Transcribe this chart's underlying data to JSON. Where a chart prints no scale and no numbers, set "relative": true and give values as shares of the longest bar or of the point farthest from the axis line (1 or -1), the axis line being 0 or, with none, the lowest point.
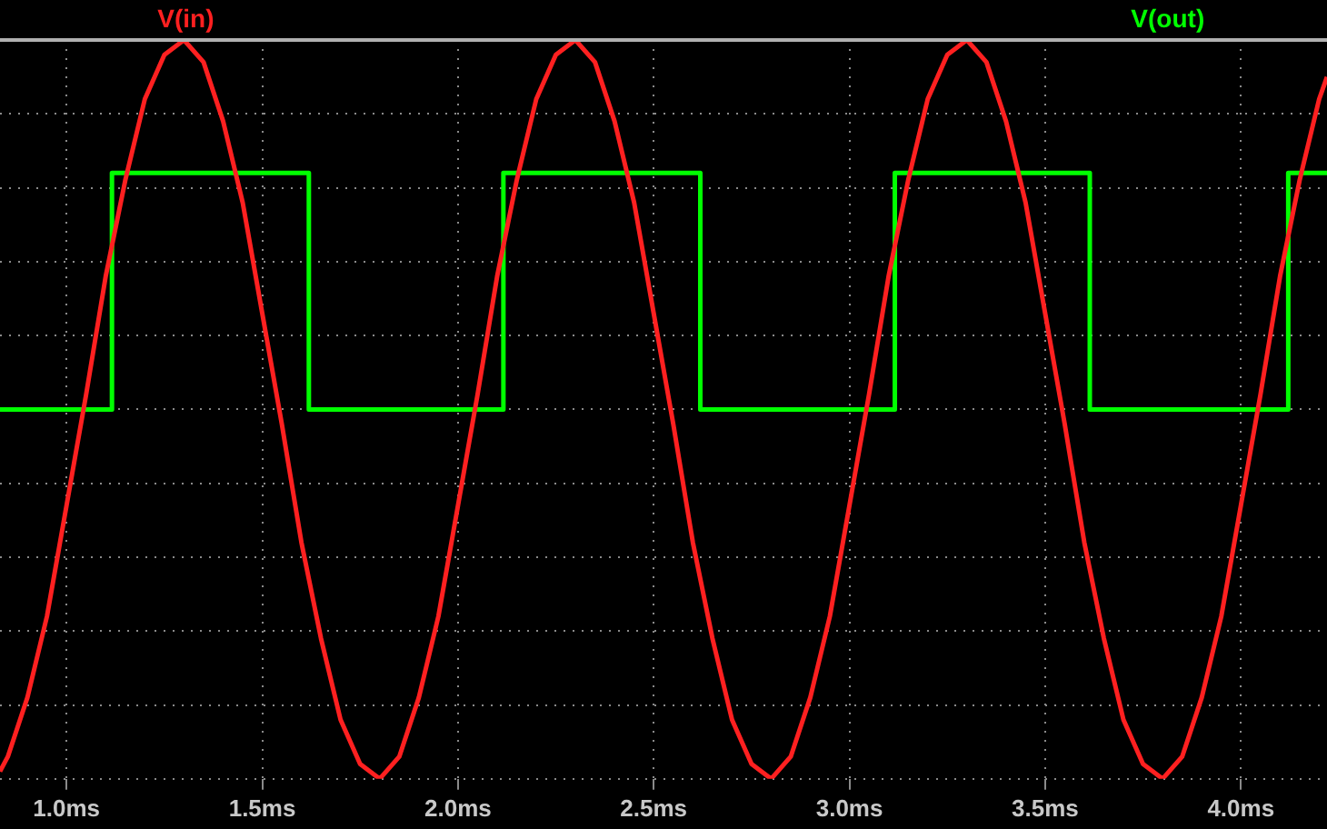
{
  "chart_data": {
    "type": "line",
    "relative": true,
    "grid": true,
    "legend": "top",
    "marker": "none",
    "line_style": "solid",
    "xlim": [
      0.83,
      4.22
    ],
    "xticks": [
      {
        "value": 1.0,
        "label": "1.0ms"
      },
      {
        "value": 1.5,
        "label": "1.5ms"
      },
      {
        "value": 2.0,
        "label": "2.0ms"
      },
      {
        "value": 2.5,
        "label": "2.5ms"
      },
      {
        "value": 3.0,
        "label": "3.0ms"
      },
      {
        "value": 3.5,
        "label": "3.5ms"
      },
      {
        "value": 4.0,
        "label": "4.0ms"
      }
    ],
    "series": [
      {
        "name": "V(in)",
        "color": "#ff2020",
        "x": [
          0.83,
          0.85,
          0.9,
          0.95,
          1.0,
          1.05,
          1.1,
          1.15,
          1.2,
          1.25,
          1.3,
          1.35,
          1.4,
          1.45,
          1.5,
          1.55,
          1.6,
          1.65,
          1.7,
          1.75,
          1.8,
          1.85,
          1.9,
          1.95,
          2.0,
          2.05,
          2.1,
          2.15,
          2.2,
          2.25,
          2.3,
          2.35,
          2.4,
          2.45,
          2.5,
          2.55,
          2.6,
          2.65,
          2.7,
          2.75,
          2.8,
          2.85,
          2.9,
          2.95,
          3.0,
          3.05,
          3.1,
          3.15,
          3.2,
          3.25,
          3.3,
          3.35,
          3.4,
          3.45,
          3.5,
          3.55,
          3.6,
          3.65,
          3.7,
          3.75,
          3.8,
          3.85,
          3.9,
          3.95,
          4.0,
          4.05,
          4.1,
          4.15,
          4.2,
          4.22
        ],
        "values": [
          0.01,
          0.03,
          0.11,
          0.22,
          0.37,
          0.52,
          0.68,
          0.81,
          0.92,
          0.98,
          1.0,
          0.97,
          0.89,
          0.78,
          0.63,
          0.48,
          0.32,
          0.19,
          0.08,
          0.02,
          0.0,
          0.03,
          0.11,
          0.22,
          0.37,
          0.52,
          0.68,
          0.81,
          0.92,
          0.98,
          1.0,
          0.97,
          0.89,
          0.78,
          0.63,
          0.48,
          0.32,
          0.19,
          0.08,
          0.02,
          0.0,
          0.03,
          0.11,
          0.22,
          0.37,
          0.52,
          0.68,
          0.81,
          0.92,
          0.98,
          1.0,
          0.97,
          0.89,
          0.78,
          0.63,
          0.48,
          0.32,
          0.19,
          0.08,
          0.02,
          0.0,
          0.03,
          0.11,
          0.22,
          0.37,
          0.52,
          0.68,
          0.81,
          0.92,
          0.95
        ]
      },
      {
        "name": "V(out)",
        "type": "step",
        "color": "#00ff00",
        "x": [
          0.83,
          1.116,
          1.619,
          2.116,
          2.619,
          3.116,
          3.614,
          4.121,
          4.22
        ],
        "values": [
          0.5,
          0.82,
          0.5,
          0.82,
          0.5,
          0.82,
          0.5,
          0.82,
          0.82
        ]
      }
    ]
  }
}
